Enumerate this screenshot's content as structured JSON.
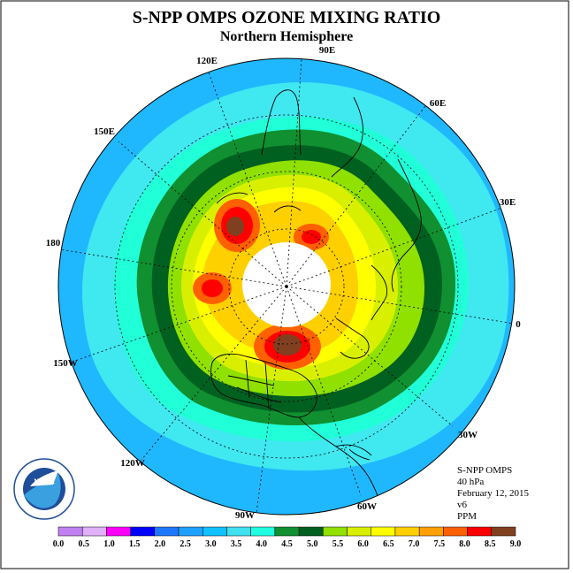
{
  "title": "S-NPP OMPS OZONE MIXING RATIO",
  "subtitle": "Northern Hemisphere",
  "longitude_labels": [
    "90E",
    "60E",
    "30E",
    "0",
    "30W",
    "60W",
    "90W",
    "120W",
    "150W",
    "180",
    "150E",
    "120E"
  ],
  "info": {
    "instrument": "S-NPP OMPS",
    "level": "40 hPa",
    "date": "February 12, 2015",
    "version": "v6",
    "units": "PPM"
  },
  "colorbar": {
    "ticks": [
      "0.0",
      "0.5",
      "1.0",
      "1.5",
      "2.0",
      "2.5",
      "3.0",
      "3.5",
      "4.0",
      "4.5",
      "5.0",
      "5.5",
      "6.0",
      "6.5",
      "7.0",
      "7.5",
      "8.0",
      "8.5",
      "9.0"
    ],
    "colors": [
      "#c080f0",
      "#e0b0f8",
      "#ff00ff",
      "#0000ff",
      "#1e78ff",
      "#1fa0ff",
      "#10c0ff",
      "#40e0f0",
      "#20ffe0",
      "#109030",
      "#006020",
      "#90e000",
      "#d8f000",
      "#ffff00",
      "#ffd000",
      "#ffa000",
      "#ff6000",
      "#ff0000",
      "#804020"
    ]
  },
  "logo": "NOAA",
  "colors": {
    "outer_band": "#1fb8ff",
    "land_lines": "#000000",
    "polar_hole": "#ffffff"
  }
}
